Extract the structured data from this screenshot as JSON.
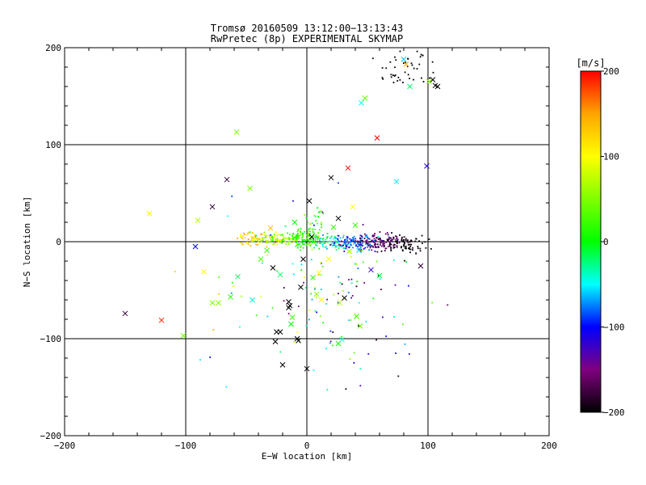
{
  "chart_data": {
    "type": "scatter",
    "title": "Tromsø 20160509 13:12:00−13:13:43",
    "subtitle": "RwPretec (8p) EXPERIMENTAL SKYMAP",
    "xlabel": "E−W location [km]",
    "ylabel": "N−S location [km]",
    "xlim": [
      -200,
      200
    ],
    "ylim": [
      -200,
      200
    ],
    "x_ticks": [
      "−200",
      "−100",
      "0",
      "100",
      "200"
    ],
    "y_ticks": [
      "−200",
      "−100",
      "0",
      "100",
      "200"
    ],
    "grid_x": [
      -100,
      0,
      100
    ],
    "grid_y": [
      -100,
      0,
      100
    ],
    "colorbar": {
      "label": "[m/s]",
      "range": [
        -200,
        200
      ],
      "ticks": [
        "200",
        "100",
        "0",
        "−100",
        "−200"
      ],
      "colors": [
        "#ff0000",
        "#ffa500",
        "#ffff00",
        "#00ff00",
        "#00ffff",
        "#0000ff",
        "#800080",
        "#000000"
      ]
    },
    "markers": [
      {
        "x": -150,
        "y": -74,
        "v": -180
      },
      {
        "x": -120,
        "y": -81,
        "v": 190
      },
      {
        "x": -102,
        "y": -97,
        "v": 40
      },
      {
        "x": -130,
        "y": 29,
        "v": 110
      },
      {
        "x": -92,
        "y": -5,
        "v": -100
      },
      {
        "x": -90,
        "y": 22,
        "v": 70
      },
      {
        "x": -85,
        "y": -31,
        "v": 100
      },
      {
        "x": -78,
        "y": 36,
        "v": -180
      },
      {
        "x": -78,
        "y": -63,
        "v": 50
      },
      {
        "x": -73,
        "y": -63,
        "v": 50
      },
      {
        "x": -66,
        "y": 64,
        "v": -180
      },
      {
        "x": -63,
        "y": -57,
        "v": 20
      },
      {
        "x": -58,
        "y": 113,
        "v": 50
      },
      {
        "x": -57,
        "y": -36,
        "v": -20
      },
      {
        "x": -47,
        "y": 55,
        "v": 50
      },
      {
        "x": -45,
        "y": -60,
        "v": -40
      },
      {
        "x": -38,
        "y": -18,
        "v": 30
      },
      {
        "x": -33,
        "y": -9,
        "v": 20
      },
      {
        "x": -30,
        "y": 14,
        "v": 140
      },
      {
        "x": -28,
        "y": -27,
        "v": -210
      },
      {
        "x": -22,
        "y": -34,
        "v": -20
      },
      {
        "x": -15,
        "y": -62,
        "v": -210
      },
      {
        "x": -14,
        "y": -66,
        "v": -210
      },
      {
        "x": -13,
        "y": -85,
        "v": 0
      },
      {
        "x": -12,
        "y": -78,
        "v": 20
      },
      {
        "x": -10,
        "y": 20,
        "v": 0
      },
      {
        "x": -8,
        "y": -100,
        "v": -210
      },
      {
        "x": -7,
        "y": -102,
        "v": -210
      },
      {
        "x": -25,
        "y": -93,
        "v": -210
      },
      {
        "x": -22,
        "y": -93,
        "v": -210
      },
      {
        "x": -26,
        "y": -103,
        "v": -210
      },
      {
        "x": -20,
        "y": -127,
        "v": -210
      },
      {
        "x": -15,
        "y": -68,
        "v": -210
      },
      {
        "x": -5,
        "y": -47,
        "v": -210
      },
      {
        "x": -3,
        "y": -18,
        "v": -210
      },
      {
        "x": 0,
        "y": -131,
        "v": -210
      },
      {
        "x": 2,
        "y": 42,
        "v": -210
      },
      {
        "x": 4,
        "y": 5,
        "v": -210
      },
      {
        "x": 5,
        "y": -37,
        "v": 20
      },
      {
        "x": 8,
        "y": -54,
        "v": 50
      },
      {
        "x": 10,
        "y": -32,
        "v": 100
      },
      {
        "x": 12,
        "y": -60,
        "v": 100
      },
      {
        "x": 18,
        "y": -18,
        "v": 100
      },
      {
        "x": 20,
        "y": 66,
        "v": -210
      },
      {
        "x": 22,
        "y": 15,
        "v": 20
      },
      {
        "x": 26,
        "y": 24,
        "v": -210
      },
      {
        "x": 26,
        "y": -105,
        "v": 0
      },
      {
        "x": 27,
        "y": -63,
        "v": 70
      },
      {
        "x": 29,
        "y": -101,
        "v": -40
      },
      {
        "x": 31,
        "y": -58,
        "v": -210
      },
      {
        "x": 34,
        "y": 76,
        "v": 200
      },
      {
        "x": 35,
        "y": -10,
        "v": 60
      },
      {
        "x": 38,
        "y": 36,
        "v": 100
      },
      {
        "x": 40,
        "y": 17,
        "v": 20
      },
      {
        "x": 41,
        "y": -77,
        "v": 20
      },
      {
        "x": 43,
        "y": -9,
        "v": -60
      },
      {
        "x": 44,
        "y": -87,
        "v": 40
      },
      {
        "x": 45,
        "y": 143,
        "v": -50
      },
      {
        "x": 48,
        "y": 148,
        "v": 40
      },
      {
        "x": 53,
        "y": -29,
        "v": -120
      },
      {
        "x": 58,
        "y": 107,
        "v": 200
      },
      {
        "x": 60,
        "y": -35,
        "v": -10
      },
      {
        "x": 74,
        "y": 62,
        "v": -50
      },
      {
        "x": 80,
        "y": 188,
        "v": -60
      },
      {
        "x": 82,
        "y": 183,
        "v": 150
      },
      {
        "x": 85,
        "y": 160,
        "v": -20
      },
      {
        "x": 94,
        "y": -25,
        "v": -180
      },
      {
        "x": 99,
        "y": 78,
        "v": -110
      },
      {
        "x": 101,
        "y": 165,
        "v": 50
      },
      {
        "x": 104,
        "y": 167,
        "v": -210
      },
      {
        "x": 106,
        "y": 161,
        "v": -210
      },
      {
        "x": 108,
        "y": 160,
        "v": -210
      }
    ]
  }
}
